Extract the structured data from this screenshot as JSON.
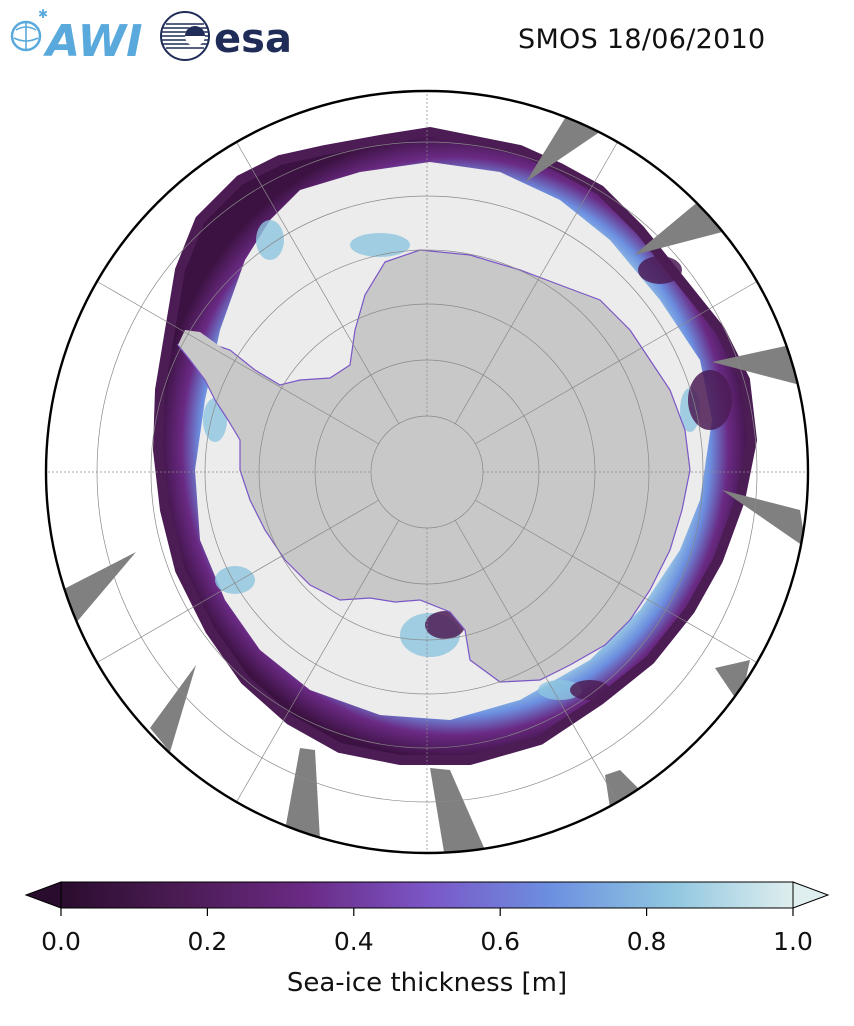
{
  "title": "SMOS 18/06/2010",
  "logos": {
    "awi": {
      "text": "AWI",
      "color": "#5aa9dc"
    },
    "esa": {
      "text": "esa",
      "color": "#1f2c57"
    }
  },
  "map": {
    "projection": "south-polar-stereographic",
    "colors": {
      "land": "#c8c8c8",
      "ocean": "#ffffff",
      "thick_ice": "#ececec",
      "no_data_swath": "#808080",
      "grid": "#888888",
      "outline": "#000000"
    },
    "legend_placement": "bottom"
  },
  "colorbar": {
    "label": "Sea-ice thickness [m]",
    "min": 0.0,
    "max": 1.0,
    "extend": "both",
    "ticks": [
      "0.0",
      "0.2",
      "0.4",
      "0.6",
      "0.8",
      "1.0"
    ],
    "stops": [
      "#2a0d2e",
      "#4c1c55",
      "#6a2a84",
      "#7b56c6",
      "#6c8fe0",
      "#8fc6e0",
      "#dfeeee"
    ]
  }
}
